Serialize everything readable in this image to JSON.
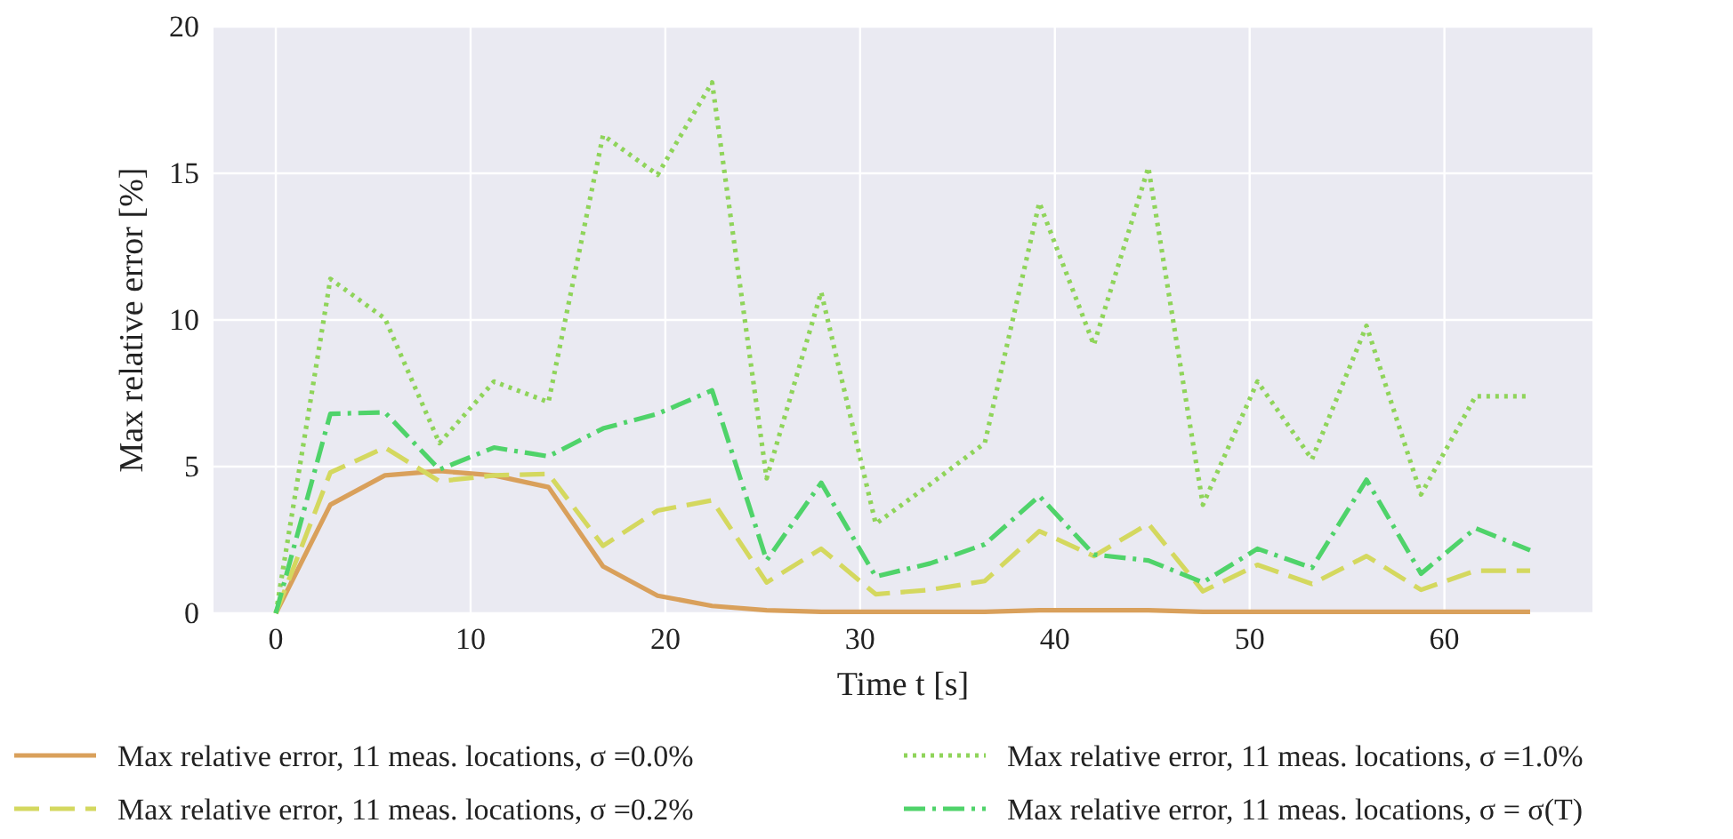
{
  "chart_data": {
    "type": "line",
    "xlabel": "Time t [s]",
    "ylabel": "Max relative error [%]",
    "x": [
      0,
      2.8,
      5.6,
      8.4,
      11.2,
      14,
      16.8,
      19.6,
      22.4,
      25.2,
      28,
      30.8,
      33.6,
      36.4,
      39.2,
      42,
      44.8,
      47.6,
      50.4,
      53.2,
      56,
      58.8,
      61.6,
      64.4
    ],
    "xlim": [
      -3.2,
      67.6
    ],
    "xticks": [
      0,
      10,
      20,
      30,
      40,
      50,
      60
    ],
    "ylim": [
      0,
      20
    ],
    "yticks": [
      0,
      5,
      10,
      15,
      20
    ],
    "grid": true,
    "legend": "bottom",
    "marker": "none",
    "series": [
      {
        "name": "Max relative error, 11 meas. locations, σ =0.0%",
        "color": "#d9a05b",
        "line_style": "solid",
        "values": [
          0,
          3.7,
          4.7,
          4.85,
          4.7,
          4.3,
          1.6,
          0.6,
          0.25,
          0.1,
          0.05,
          0.05,
          0.05,
          0.05,
          0.1,
          0.1,
          0.1,
          0.05,
          0.05,
          0.05,
          0.05,
          0.05,
          0.05,
          0.05
        ]
      },
      {
        "name": "Max relative error, 11 meas. locations, σ =0.2%",
        "color": "#d4d85f",
        "line_style": "dashed",
        "values": [
          0,
          4.8,
          5.65,
          4.5,
          4.7,
          4.75,
          2.3,
          3.5,
          3.85,
          1.05,
          2.2,
          0.65,
          0.8,
          1.1,
          2.8,
          1.95,
          3.05,
          0.75,
          1.65,
          1.0,
          1.95,
          0.8,
          1.45,
          1.45
        ]
      },
      {
        "name": "Max relative error, 11 meas. locations, σ =1.0%",
        "color": "#8fd45a",
        "line_style": "dotted",
        "values": [
          0,
          11.4,
          10.05,
          5.8,
          7.9,
          7.2,
          16.3,
          14.95,
          18.1,
          4.6,
          10.95,
          3.05,
          4.4,
          5.8,
          14,
          9.15,
          15.2,
          3.7,
          7.9,
          5.25,
          9.8,
          4.05,
          7.4,
          7.4
        ]
      },
      {
        "name": "Max relative error, 11 meas. locations, σ = σ(T)",
        "color": "#4fd36a",
        "line_style": "dashdot",
        "values": [
          0,
          6.8,
          6.85,
          4.9,
          5.65,
          5.35,
          6.3,
          6.8,
          7.6,
          1.8,
          4.45,
          1.25,
          1.7,
          2.35,
          4,
          2,
          1.8,
          1.05,
          2.2,
          1.55,
          4.55,
          1.35,
          2.9,
          2.15
        ]
      }
    ]
  }
}
